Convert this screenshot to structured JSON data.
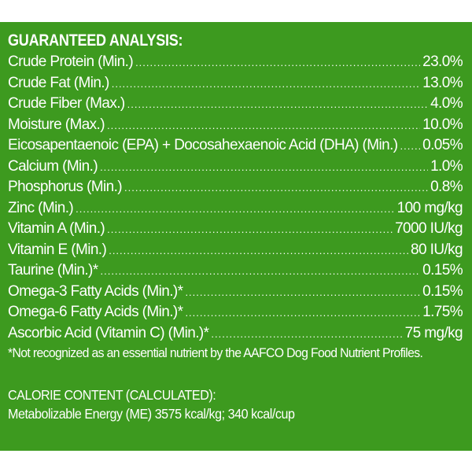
{
  "analysis": {
    "title": "GUARANTEED ANALYSIS:",
    "rows": [
      {
        "name": "Crude Protein (Min.)",
        "value": "23.0%"
      },
      {
        "name": "Crude Fat (Min.)",
        "value": "13.0%"
      },
      {
        "name": "Crude Fiber (Max.)",
        "value": "4.0%"
      },
      {
        "name": "Moisture (Max.)",
        "value": "10.0%"
      },
      {
        "name": "Eicosapentaenoic (EPA) + Docosahexaenoic Acid (DHA) (Min.)",
        "value": "0.05%"
      },
      {
        "name": "Calcium (Min.)",
        "value": "1.0%"
      },
      {
        "name": "Phosphorus (Min.)",
        "value": "0.8%"
      },
      {
        "name": "Zinc (Min.)",
        "value": "100 mg/kg"
      },
      {
        "name": "Vitamin A (Min.)",
        "value": "7000 IU/kg"
      },
      {
        "name": "Vitamin E (Min.)",
        "value": "80 IU/kg"
      },
      {
        "name": "Taurine (Min.)*",
        "value": "0.15%"
      },
      {
        "name": "Omega-3 Fatty Acids (Min.)*",
        "value": "0.15%"
      },
      {
        "name": "Omega-6 Fatty Acids (Min.)*",
        "value": "1.75%"
      },
      {
        "name": "Ascorbic Acid (Vitamin C) (Min.)*",
        "value": "75 mg/kg"
      }
    ],
    "footnote": "*Not recognized as an essential nutrient by the AAFCO Dog Food Nutrient Profiles."
  },
  "calorie": {
    "title": "CALORIE CONTENT (CALCULATED):",
    "text": "Metabolizable Energy (ME) 3575 kcal/kg;  340 kcal/cup"
  },
  "colors": {
    "panel_background": "#3d9a1f",
    "text": "#ffffff",
    "page_background": "#ffffff"
  }
}
